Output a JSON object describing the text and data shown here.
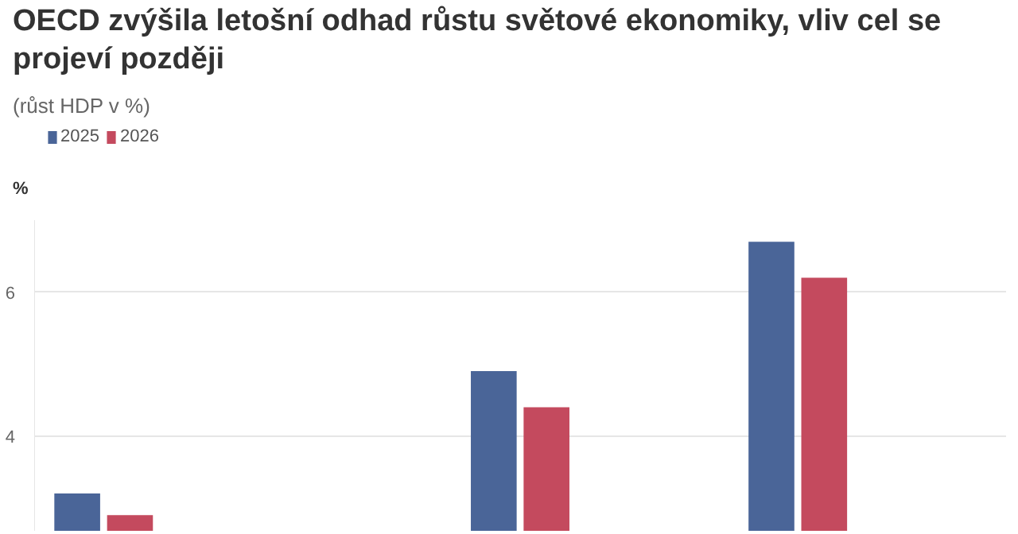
{
  "chart_data": {
    "type": "bar",
    "title": "OECD zvýšila letošní odhad růstu světové ekonomiky, vliv cel se projeví později",
    "subtitle": "(růst HDP v %)",
    "ylabel": "%",
    "categories": [
      null,
      null,
      null,
      null,
      null,
      null,
      null
    ],
    "series": [
      {
        "name": "2025",
        "color": "#4a6598",
        "values": [
          3.2,
          null,
          null,
          4.9,
          null,
          6.7,
          null
        ]
      },
      {
        "name": "2026",
        "color": "#c44a5e",
        "values": [
          2.9,
          null,
          null,
          4.4,
          null,
          6.2,
          null
        ]
      }
    ],
    "ylim": [
      2.67,
      7.0
    ],
    "yticks": [
      4,
      6
    ],
    "grid": "y",
    "legend": "top left"
  }
}
